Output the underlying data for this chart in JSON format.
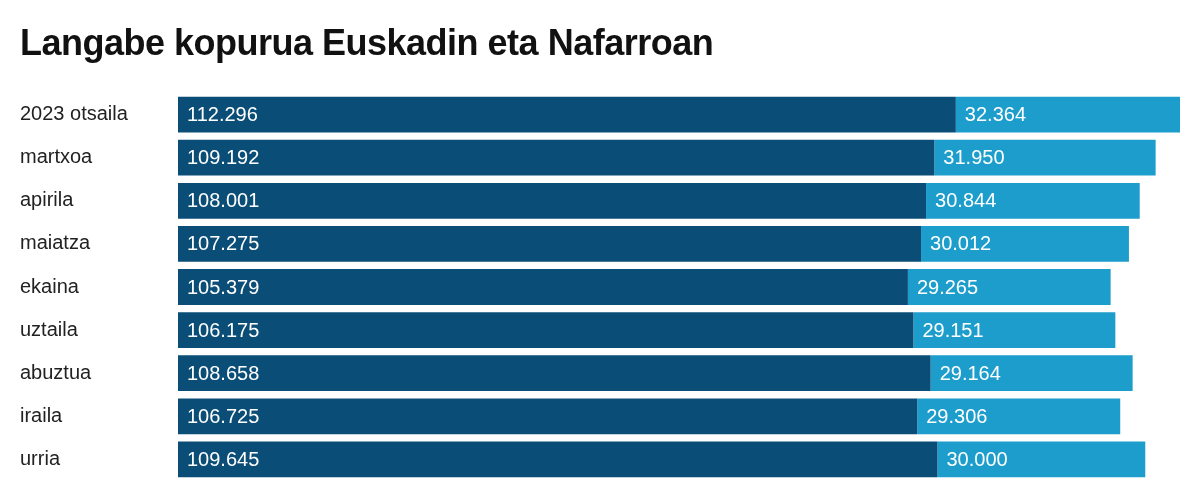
{
  "chart_data": {
    "type": "bar",
    "title": "Langabe kopurua Euskadin eta Nafarroan",
    "orientation": "horizontal",
    "stacked": true,
    "legend": false,
    "tick_labels": "y",
    "categories": [
      "2023 otsaila",
      "martxoa",
      "apirila",
      "maiatza",
      "ekaina",
      "uztaila",
      "abuztua",
      "iraila",
      "urria"
    ],
    "series": [
      {
        "color": "#0a4d77",
        "values": [
          112296,
          109192,
          108001,
          107275,
          105379,
          106175,
          108658,
          106725,
          109645
        ],
        "value_labels": [
          "112.296",
          "109.192",
          "108.001",
          "107.275",
          "105.379",
          "106.175",
          "108.658",
          "106.725",
          "109.645"
        ]
      },
      {
        "color": "#1c9dcc",
        "values": [
          32364,
          31950,
          30844,
          30012,
          29265,
          29151,
          29164,
          29306,
          30000
        ],
        "value_labels": [
          "32.364",
          "31.950",
          "30.844",
          "30.012",
          "29.265",
          "29.151",
          "29.164",
          "29.306",
          "30.000"
        ]
      }
    ]
  }
}
